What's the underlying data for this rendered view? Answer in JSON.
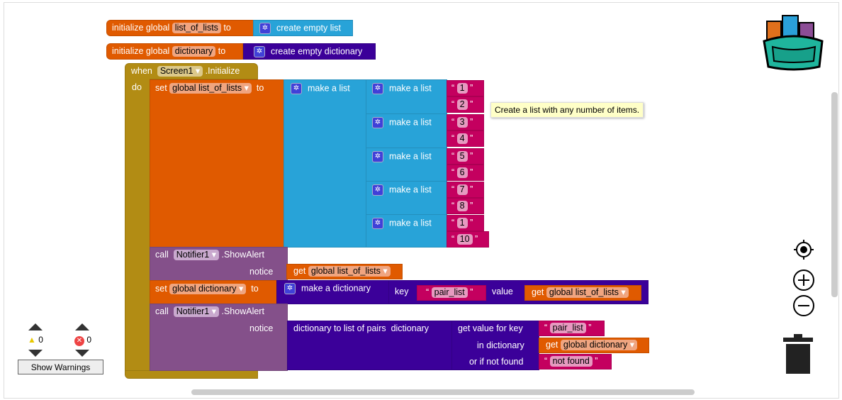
{
  "blocks": {
    "init1": {
      "label": "initialize global",
      "var": "list_of_lists",
      "to": "to",
      "value": "create empty list"
    },
    "init2": {
      "label": "initialize global",
      "var": "dictionary",
      "to": "to",
      "value": "create empty dictionary"
    },
    "event": {
      "when": "when",
      "component": "Screen1",
      "event": ".Initialize",
      "do": "do"
    },
    "set1": {
      "set": "set",
      "var": "global list_of_lists",
      "to": "to",
      "make_list": "make a list"
    },
    "inner_lists": [
      {
        "label": "make a list",
        "items": [
          "1",
          "2"
        ]
      },
      {
        "label": "make a list",
        "items": [
          "3",
          "4"
        ]
      },
      {
        "label": "make a list",
        "items": [
          "5",
          "6"
        ]
      },
      {
        "label": "make a list",
        "items": [
          "7",
          "8"
        ]
      },
      {
        "label": "make a list",
        "items": [
          "1",
          "10"
        ]
      }
    ],
    "call1": {
      "call": "call",
      "component": "Notifier1",
      "method": ".ShowAlert",
      "notice": "notice",
      "get": "get",
      "var": "global list_of_lists"
    },
    "set2": {
      "set": "set",
      "var": "global dictionary",
      "to": "to",
      "make_dict": "make a dictionary",
      "key": "key",
      "key_value": "pair_list",
      "value": "value",
      "get": "get",
      "get_var": "global list_of_lists"
    },
    "call2": {
      "call": "call",
      "component": "Notifier1",
      "method": ".ShowAlert",
      "notice": "notice",
      "to_pairs": "dictionary to list of pairs",
      "dictionary": "dictionary",
      "get_value": "get value for key",
      "key_value": "pair_list",
      "in_dict": "in dictionary",
      "get": "get",
      "get_var": "global dictionary",
      "not_found_label": "or if not found",
      "not_found": "not found"
    }
  },
  "tooltip": "Create a list with any number of items.",
  "warnings": {
    "warning_count": "0",
    "error_count": "0",
    "button": "Show Warnings"
  },
  "colors": {
    "variables": "#e05a00",
    "lists": "#28a3d8",
    "dictionaries": "#3b0099",
    "control": "#b28c14",
    "component": "#84508a",
    "text": "#c4005f"
  }
}
